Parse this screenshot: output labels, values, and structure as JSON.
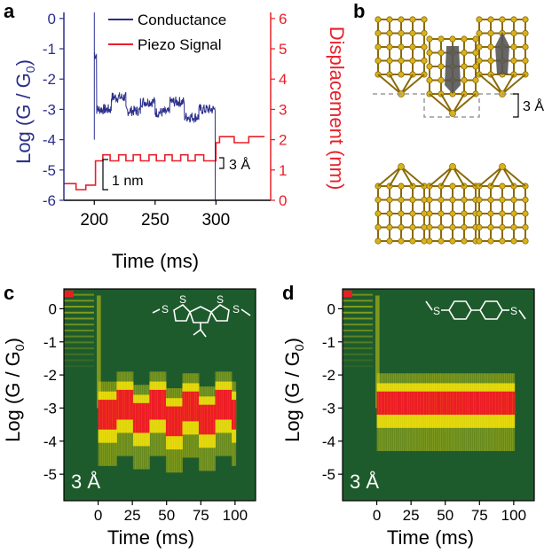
{
  "panel_labels": {
    "a": "a",
    "b": "b",
    "c": "c",
    "d": "d"
  },
  "colors": {
    "conductance": "#2b2f8a",
    "piezo": "#e8202a",
    "heatmap_bg": "#1e5b2c",
    "heat_mid": "#f2e10b",
    "heat_high": "#ec1c24",
    "gold": "#d8b21c",
    "gold_dark": "#8a6a08",
    "molecule": "#555555"
  },
  "panel_b": {
    "gap_label": "3 Å"
  },
  "chart_data": [
    {
      "panel": "a",
      "type": "line",
      "xlabel": "Time (ms)",
      "ylabel_left": "Log (G / G",
      "ylabel_left_sub": "0",
      "ylabel_left_end": ")",
      "ylabel_right": "Displacement (nm)",
      "xlim": [
        175,
        345
      ],
      "ylim_left": [
        -6,
        0.2
      ],
      "ylim_right": [
        0,
        6.2
      ],
      "xticks": [
        200,
        250,
        300
      ],
      "yticks_left": [
        "0",
        "-1",
        "-2",
        "-3",
        "-4",
        "-5",
        "-6"
      ],
      "yticks_right": [
        "6",
        "5",
        "4",
        "3",
        "2",
        "1",
        "0"
      ],
      "legend": {
        "placement": "top-right",
        "entries": [
          "Conductance",
          "Piezo Signal"
        ]
      },
      "annotations": {
        "scale_nm": "1 nm",
        "scale_step": "3 Å"
      },
      "series": [
        {
          "name": "Conductance",
          "axis": "left",
          "steps": [
            [
              200,
              200,
              0.2
            ],
            [
              200,
              202,
              -1.2
            ],
            [
              202,
              214,
              -3.0
            ],
            [
              214,
              226,
              -2.6
            ],
            [
              226,
              238,
              -3.05
            ],
            [
              238,
              250,
              -2.75
            ],
            [
              250,
              262,
              -3.1
            ],
            [
              262,
              274,
              -2.75
            ],
            [
              274,
              286,
              -3.25
            ],
            [
              286,
              299.5,
              -3.0
            ]
          ],
          "drop_to": -6
        },
        {
          "name": "Piezo Signal",
          "axis": "right",
          "x": [
            175,
            185,
            185,
            193,
            193,
            201,
            201,
            207,
            207,
            213,
            213,
            220,
            220,
            226,
            226,
            232,
            232,
            238,
            238,
            245,
            245,
            251,
            251,
            258,
            258,
            264,
            264,
            271,
            271,
            277,
            277,
            283,
            283,
            290,
            290,
            300,
            300,
            303,
            303,
            315,
            315,
            327,
            327,
            340
          ],
          "y": [
            0.55,
            0.55,
            0.35,
            0.35,
            0.5,
            0.5,
            1.3,
            1.3,
            1.5,
            1.5,
            1.3,
            1.3,
            1.5,
            1.5,
            1.3,
            1.3,
            1.5,
            1.5,
            1.3,
            1.3,
            1.5,
            1.5,
            1.3,
            1.3,
            1.5,
            1.5,
            1.3,
            1.3,
            1.5,
            1.5,
            1.3,
            1.3,
            1.5,
            1.5,
            1.3,
            1.3,
            1.9,
            1.9,
            2.1,
            2.1,
            1.9,
            1.9,
            2.1,
            2.1
          ]
        }
      ]
    },
    {
      "panel": "c",
      "type": "heatmap",
      "xlabel": "Time (ms)",
      "ylabel": "Log (G / G",
      "ylabel_sub": "0",
      "ylabel_end": ")",
      "xlim": [
        -25,
        115
      ],
      "ylim": [
        -5.8,
        0.6
      ],
      "xticks": [
        "0",
        "25",
        "50",
        "75",
        "100"
      ],
      "yticks": [
        "0",
        "-1",
        "-2",
        "-3",
        "-4",
        "-5"
      ],
      "corner_label": "3 Å",
      "band_center": [
        [
          0,
          -3.2
        ],
        [
          12,
          -2.9
        ],
        [
          24,
          -3.3
        ],
        [
          36,
          -2.9
        ],
        [
          48,
          -3.4
        ],
        [
          60,
          -2.95
        ],
        [
          72,
          -3.35
        ],
        [
          84,
          -2.9
        ],
        [
          96,
          -3.2
        ]
      ],
      "band_half_width": 0.45
    },
    {
      "panel": "d",
      "type": "heatmap",
      "xlabel": "Time (ms)",
      "ylabel": "Log (G / G",
      "ylabel_sub": "0",
      "ylabel_end": ")",
      "xlim": [
        -25,
        115
      ],
      "ylim": [
        -5.8,
        0.6
      ],
      "xticks": [
        "0",
        "25",
        "50",
        "75",
        "100"
      ],
      "yticks": [
        "0",
        "-1",
        "-2",
        "-3",
        "-4",
        "-5"
      ],
      "corner_label": "3 Å",
      "band_center": [
        [
          0,
          -2.85
        ],
        [
          100,
          -2.85
        ]
      ],
      "band_half_width": 0.35
    }
  ]
}
